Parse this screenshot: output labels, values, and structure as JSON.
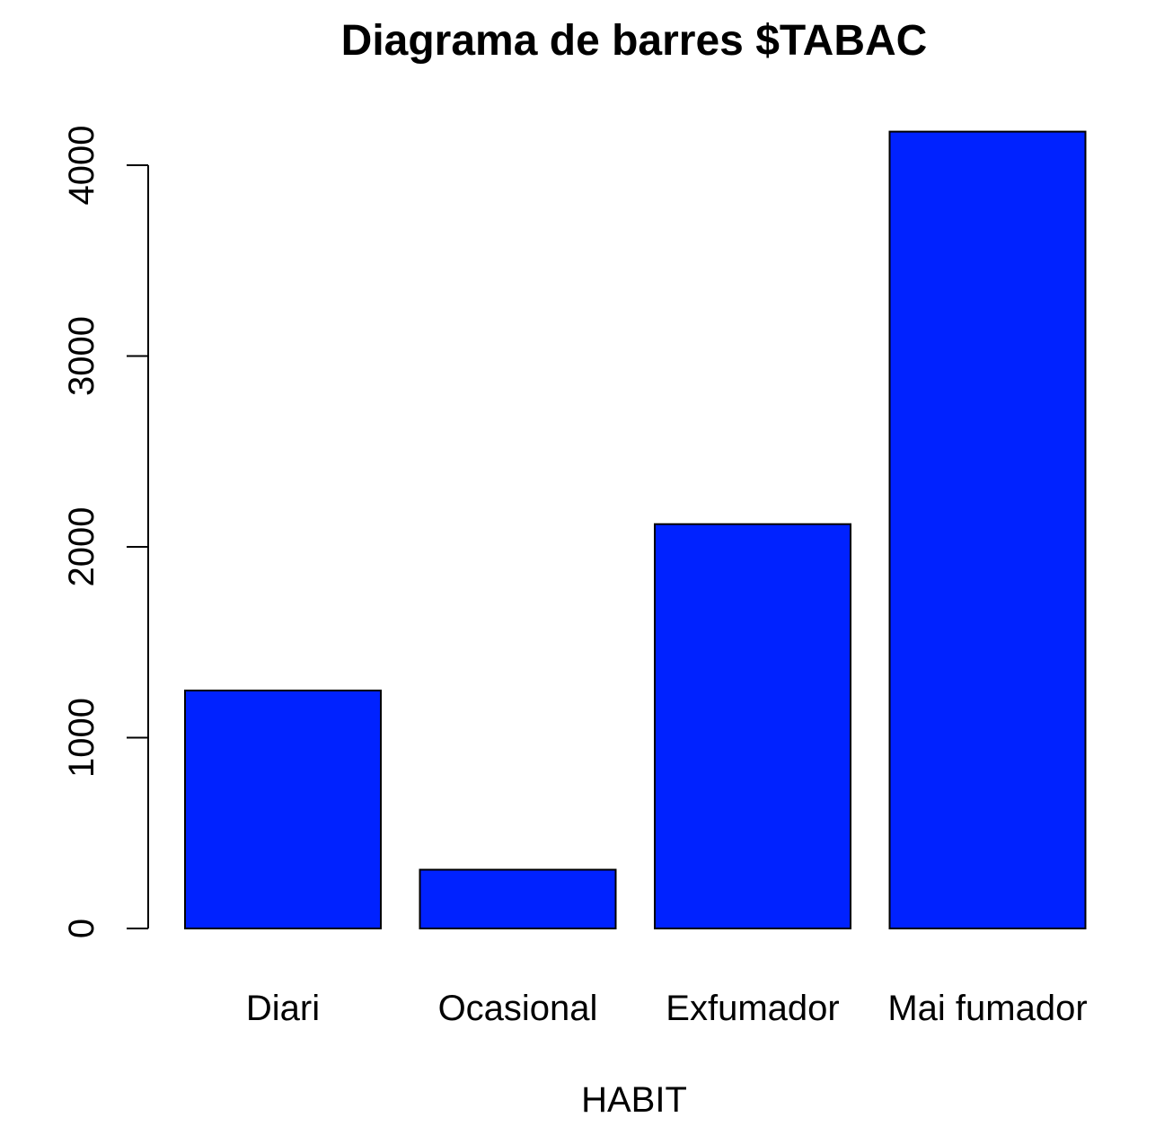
{
  "chart_data": {
    "type": "bar",
    "title": "Diagrama de barres $TABAC",
    "xlabel": "HABIT",
    "ylabel": "",
    "categories": [
      "Diari",
      "Ocasional",
      "Exfumador",
      "Mai fumador"
    ],
    "values": [
      1247,
      308,
      2119,
      4176
    ],
    "ylim": [
      0,
      4000
    ],
    "yticks": [
      0,
      1000,
      2000,
      3000,
      4000
    ],
    "ytick_labels": [
      "0",
      "1000",
      "2000",
      "3000",
      "4000"
    ],
    "grid": false,
    "legend": "none",
    "bar_color": "#0022FF",
    "edge_color": "#000000"
  }
}
